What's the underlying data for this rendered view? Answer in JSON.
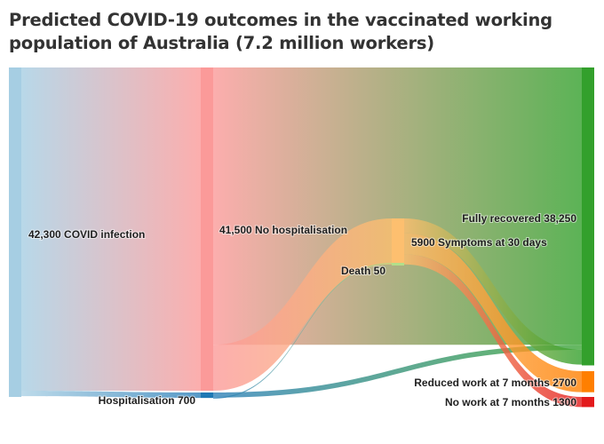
{
  "title": "Predicted COVID-19 outcomes in the vaccinated working population of Australia (7.2 million workers)",
  "colors": {
    "infection": "#a6cee3",
    "no_hospitalisation": "#fb9a99",
    "hospitalisation": "#1f78b4",
    "symptoms_30_days": "#fdbf6f",
    "fully_recovered": "#33a02c",
    "reduced_work": "#ff7f00",
    "no_work": "#e31a1c",
    "death": "#b2df8a"
  },
  "chart_data": {
    "type": "sankey",
    "title": "Predicted COVID-19 outcomes in the vaccinated working population of Australia (7.2 million workers)",
    "units": "workers",
    "nodes": [
      {
        "id": "infection",
        "label": "42,300 COVID infection",
        "value": 42300,
        "column": 0
      },
      {
        "id": "no_hosp",
        "label": "41,500 No hospitalisation",
        "value": 41500,
        "column": 1
      },
      {
        "id": "hosp",
        "label": "Hospitalisation 700",
        "value": 700,
        "column": 1
      },
      {
        "id": "symptoms",
        "label": "5900 Symptoms at 30 days",
        "value": 5900,
        "column": 2
      },
      {
        "id": "death",
        "label": "Death 50",
        "value": 50,
        "column": 2
      },
      {
        "id": "recovered",
        "label": "Fully recovered 38,250",
        "value": 38250,
        "column": 3
      },
      {
        "id": "reduced",
        "label": "Reduced work at 7 months 2700",
        "value": 2700,
        "column": 3
      },
      {
        "id": "nowork",
        "label": "No work at 7 months 1300",
        "value": 1300,
        "column": 3
      }
    ],
    "links": [
      {
        "source": "infection",
        "target": "no_hosp",
        "value": 41500
      },
      {
        "source": "infection",
        "target": "hosp",
        "value": 700
      },
      {
        "source": "no_hosp",
        "target": "recovered",
        "value": 35600
      },
      {
        "source": "no_hosp",
        "target": "symptoms",
        "value": 5900
      },
      {
        "source": "hosp",
        "target": "recovered",
        "value": 650
      },
      {
        "source": "hosp",
        "target": "death",
        "value": 50
      },
      {
        "source": "symptoms",
        "target": "recovered",
        "value": 1900
      },
      {
        "source": "symptoms",
        "target": "reduced",
        "value": 2700
      },
      {
        "source": "symptoms",
        "target": "nowork",
        "value": 1300
      }
    ]
  }
}
